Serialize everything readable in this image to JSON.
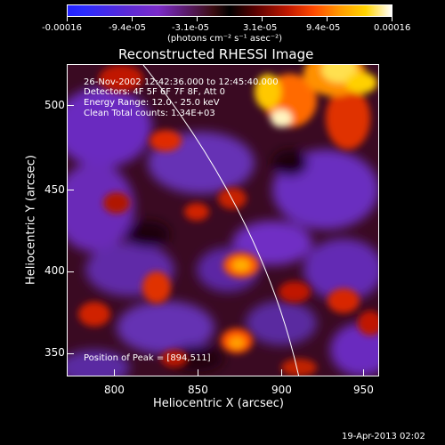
{
  "colorbar": {
    "ticks": [
      "-0.00016",
      "-9.4e-05",
      "-3.1e-05",
      "3.1e-05",
      "9.4e-05",
      "0.00016"
    ],
    "units": "(photons cm⁻² s⁻¹ asec⁻²)"
  },
  "title": "Reconstructed RHESSI Image",
  "annotations": {
    "time": "26-Nov-2002 12:42:36.000 to 12:45:40.000",
    "detectors": "Detectors: 4F 5F 6F 7F 8F, Att 0",
    "energy": "Energy Range: 12.0 - 25.0 keV",
    "clean": "Clean     Total counts: 1.34E+03",
    "peak": "Position of Peak = [894,511]"
  },
  "axes": {
    "xlabel": "Heliocentric X (arcsec)",
    "ylabel": "Heliocentric Y (arcsec)",
    "xticks": [
      "800",
      "850",
      "900",
      "950"
    ],
    "yticks": [
      "500",
      "450",
      "400",
      "350"
    ]
  },
  "footer": {
    "date": "19-Apr-2013 02:02"
  }
}
